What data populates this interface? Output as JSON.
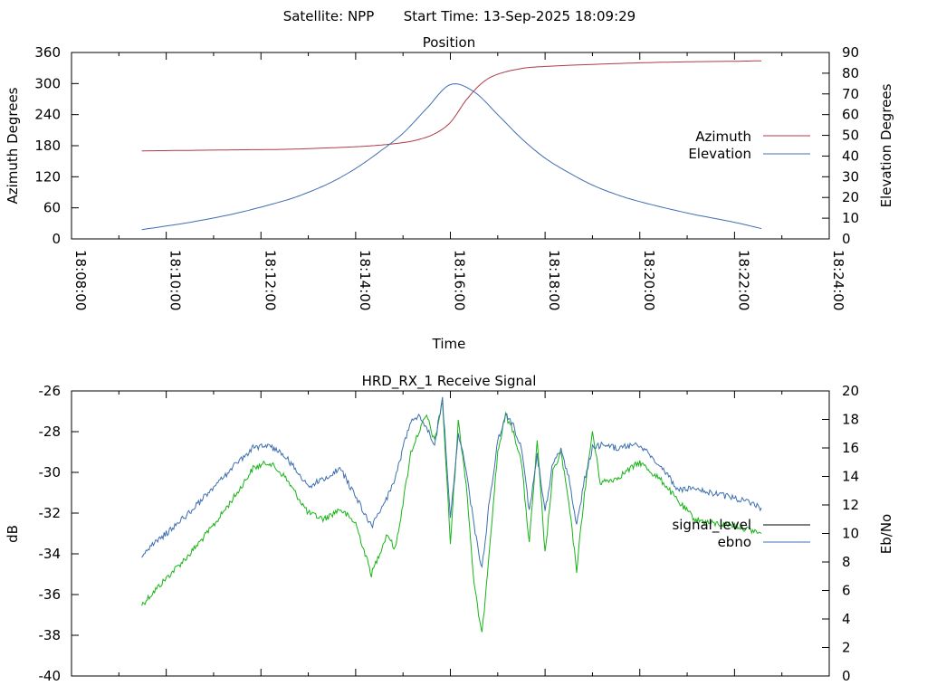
{
  "header": {
    "satellite_label": "Satellite: NPP",
    "start_label": "Start Time: 13-Sep-2025 18:09:29"
  },
  "colors": {
    "azimuth": "#b03a48",
    "elevation": "#3f6fb0",
    "signal_level": "#000000",
    "ebno": "#3f6fb0",
    "green": "#18b418"
  },
  "chart_data": [
    {
      "type": "line",
      "title": "Position",
      "xlabel": "Time",
      "ylabel": "Azimuth Degrees",
      "y2label": "Elevation Degrees",
      "xlim": [
        "18:08:00",
        "18:24:00"
      ],
      "x_ticks": [
        "18:08:00",
        "18:10:00",
        "18:12:00",
        "18:14:00",
        "18:16:00",
        "18:18:00",
        "18:20:00",
        "18:22:00",
        "18:24:00"
      ],
      "ylim": [
        0,
        360
      ],
      "y_ticks": [
        0,
        60,
        120,
        180,
        240,
        300,
        360
      ],
      "y2lim": [
        0,
        90
      ],
      "y2_ticks": [
        0,
        10,
        20,
        30,
        40,
        50,
        60,
        70,
        80,
        90
      ],
      "legend_position": "right",
      "series": [
        {
          "name": "Azimuth",
          "axis": "y",
          "x": [
            "18:09:29",
            "18:10:30",
            "18:11:30",
            "18:12:30",
            "18:13:30",
            "18:14:00",
            "18:14:30",
            "18:15:00",
            "18:15:20",
            "18:15:40",
            "18:16:00",
            "18:16:20",
            "18:16:40",
            "18:17:00",
            "18:17:30",
            "18:18:00",
            "18:19:00",
            "18:20:00",
            "18:21:00",
            "18:22:00",
            "18:22:34"
          ],
          "values": [
            170,
            171,
            172,
            173,
            176,
            178,
            181,
            186,
            192,
            203,
            225,
            268,
            301,
            318,
            329,
            333,
            337,
            340,
            342,
            343,
            344
          ]
        },
        {
          "name": "Elevation",
          "axis": "y2",
          "x": [
            "18:09:29",
            "18:10:30",
            "18:11:30",
            "18:12:30",
            "18:13:00",
            "18:13:30",
            "18:14:00",
            "18:14:30",
            "18:15:00",
            "18:15:30",
            "18:16:00",
            "18:16:30",
            "18:17:00",
            "18:17:30",
            "18:18:00",
            "18:18:30",
            "18:19:00",
            "18:19:30",
            "18:20:00",
            "18:21:00",
            "18:22:00",
            "18:22:34"
          ],
          "values": [
            4.5,
            8,
            12.5,
            18.5,
            22.5,
            27.5,
            34,
            42,
            51,
            63,
            74.5,
            71,
            60,
            48.5,
            39,
            32,
            26,
            21.5,
            18,
            12.5,
            8,
            5
          ]
        }
      ]
    },
    {
      "type": "line",
      "title": "HRD_RX_1 Receive Signal",
      "ylabel": "dB",
      "y2label": "Eb/No",
      "xlim": [
        "18:08:00",
        "18:24:00"
      ],
      "ylim": [
        -40,
        -26
      ],
      "y_ticks": [
        -40,
        -38,
        -36,
        -34,
        -32,
        -30,
        -28,
        -26
      ],
      "y2lim": [
        0,
        20
      ],
      "y2_ticks": [
        0,
        2,
        4,
        6,
        8,
        10,
        12,
        14,
        16,
        18,
        20
      ],
      "legend_position": "right",
      "series": [
        {
          "name": "signal_level",
          "axis": "y",
          "color_note": "green",
          "x": [
            "18:09:29",
            "18:10:00",
            "18:10:30",
            "18:11:00",
            "18:11:30",
            "18:11:50",
            "18:12:10",
            "18:12:30",
            "18:13:00",
            "18:13:20",
            "18:13:40",
            "18:14:00",
            "18:14:20",
            "18:14:40",
            "18:14:50",
            "18:15:00",
            "18:15:10",
            "18:15:20",
            "18:15:30",
            "18:15:40",
            "18:15:50",
            "18:16:00",
            "18:16:10",
            "18:16:20",
            "18:16:30",
            "18:16:40",
            "18:16:50",
            "18:17:00",
            "18:17:10",
            "18:17:20",
            "18:17:30",
            "18:17:40",
            "18:17:50",
            "18:18:00",
            "18:18:10",
            "18:18:20",
            "18:18:30",
            "18:18:40",
            "18:18:50",
            "18:19:00",
            "18:19:10",
            "18:19:30",
            "18:20:00",
            "18:20:30",
            "18:20:50",
            "18:21:10",
            "18:21:30",
            "18:22:00",
            "18:22:34"
          ],
          "values": [
            -36.5,
            -35.2,
            -34.0,
            -32.6,
            -31.0,
            -29.8,
            -29.5,
            -30.2,
            -32.0,
            -32.3,
            -31.8,
            -32.5,
            -35.0,
            -33.0,
            -33.8,
            -31.5,
            -29.0,
            -28.0,
            -27.2,
            -28.5,
            -26.5,
            -33.5,
            -27.5,
            -30.5,
            -35.5,
            -38.0,
            -33.5,
            -29.0,
            -27.2,
            -28.0,
            -29.5,
            -33.5,
            -28.5,
            -34.0,
            -30.0,
            -29.0,
            -31.5,
            -34.8,
            -31.0,
            -28.0,
            -30.5,
            -30.3,
            -29.5,
            -30.5,
            -31.5,
            -32.3,
            -32.5,
            -32.6,
            -33.0
          ]
        },
        {
          "name": "ebno",
          "axis": "y2",
          "x": [
            "18:09:29",
            "18:10:00",
            "18:10:30",
            "18:11:00",
            "18:11:30",
            "18:11:50",
            "18:12:10",
            "18:12:30",
            "18:13:00",
            "18:13:20",
            "18:13:40",
            "18:14:00",
            "18:14:20",
            "18:14:40",
            "18:14:50",
            "18:15:00",
            "18:15:10",
            "18:15:20",
            "18:15:30",
            "18:15:40",
            "18:15:50",
            "18:16:00",
            "18:16:10",
            "18:16:20",
            "18:16:30",
            "18:16:40",
            "18:16:50",
            "18:17:00",
            "18:17:10",
            "18:17:20",
            "18:17:30",
            "18:17:40",
            "18:17:50",
            "18:18:00",
            "18:18:10",
            "18:18:20",
            "18:18:30",
            "18:18:40",
            "18:18:50",
            "18:19:00",
            "18:19:10",
            "18:19:30",
            "18:20:00",
            "18:20:30",
            "18:20:50",
            "18:21:10",
            "18:21:30",
            "18:22:00",
            "18:22:34"
          ],
          "values": [
            8.5,
            10.0,
            11.5,
            13.2,
            15.0,
            16.0,
            16.2,
            15.5,
            13.3,
            13.8,
            14.6,
            12.6,
            10.5,
            12.5,
            13.8,
            16.0,
            18.0,
            18.3,
            17.5,
            16.2,
            19.5,
            11.0,
            17.0,
            14.5,
            10.5,
            7.5,
            12.5,
            16.5,
            18.3,
            17.5,
            16.0,
            11.5,
            15.5,
            11.5,
            15.0,
            15.8,
            14.0,
            10.5,
            13.8,
            16.0,
            16.2,
            16.0,
            16.2,
            14.5,
            13.0,
            13.3,
            12.8,
            12.5,
            11.8
          ]
        }
      ]
    }
  ]
}
